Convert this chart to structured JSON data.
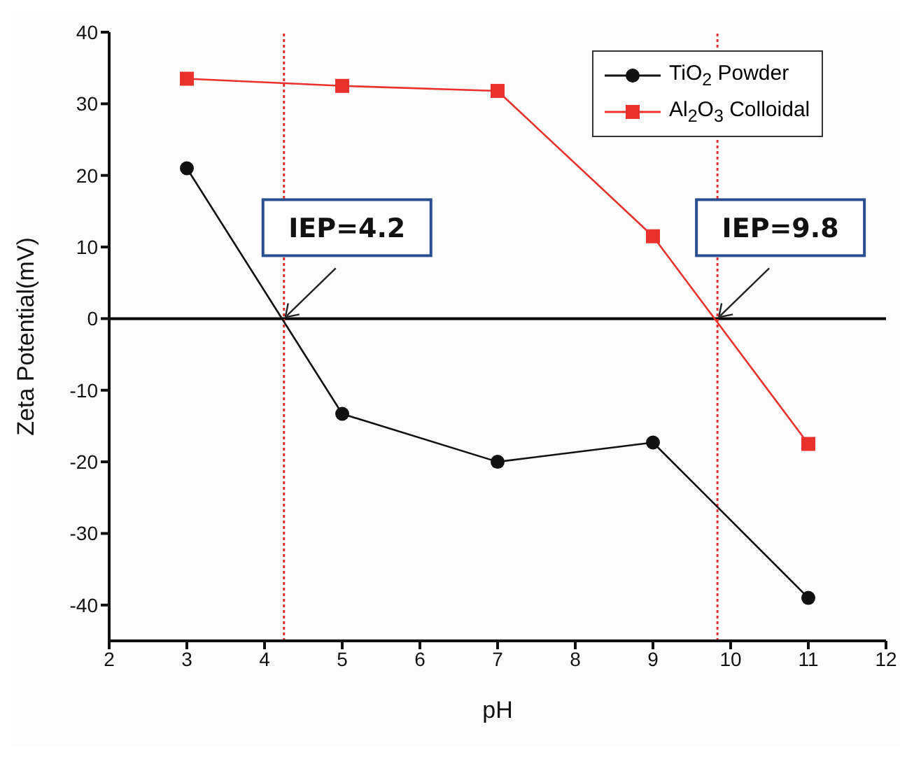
{
  "chart_data": {
    "type": "line",
    "xlabel": "pH",
    "ylabel": "Zeta Potential(mV)",
    "x": [
      3,
      5,
      7,
      9,
      11
    ],
    "series": [
      {
        "name": "TiO$_{2}$ Powder",
        "color": "#111111",
        "marker": "circle",
        "values": [
          21,
          -13.3,
          -20,
          -17.3,
          -39
        ]
      },
      {
        "name": "Al$_{2}$O$_{3}$ Colloidal",
        "color": "#e8322b",
        "marker": "square",
        "values": [
          33.5,
          32.5,
          31.8,
          11.5,
          -17.5
        ]
      }
    ],
    "xlim": [
      2,
      12
    ],
    "xticks": [
      2,
      3,
      4,
      5,
      6,
      7,
      8,
      9,
      10,
      11,
      12
    ],
    "ylim": [
      -45,
      40
    ],
    "yticks": [
      -40,
      -30,
      -20,
      -10,
      0,
      10,
      20,
      30,
      40
    ],
    "ref_lines": [
      {
        "axis": "y",
        "value": 0,
        "color": "#000000",
        "line_style": "solid"
      },
      {
        "axis": "x",
        "value": 4.25,
        "color": "#e8322b",
        "line_style": "dotted"
      },
      {
        "axis": "x",
        "value": 9.83,
        "color": "#e8322b",
        "line_style": "dotted"
      }
    ],
    "annotations": [
      {
        "text": "IEP=4.2",
        "x": 4.25,
        "y": 0
      },
      {
        "text": "IEP=9.8",
        "x": 9.83,
        "y": 0
      }
    ],
    "legend": "top right",
    "line_style": "solid"
  }
}
